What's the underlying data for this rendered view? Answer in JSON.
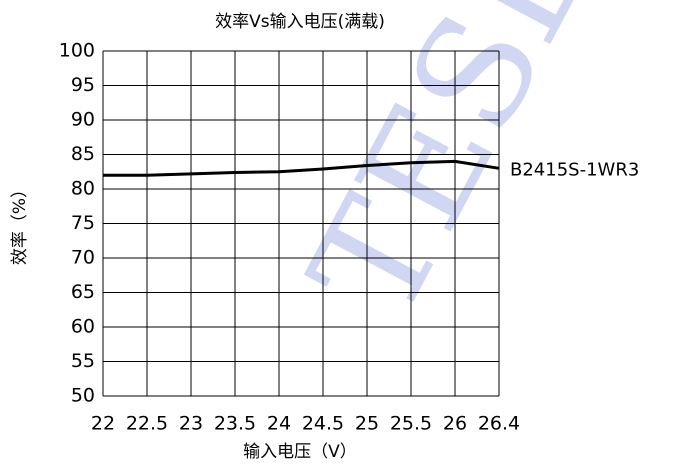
{
  "chart_data": {
    "type": "line",
    "title": "效率Vs输入电压(满载)",
    "x_label": "输入电压（V）",
    "y_label": "效率（%）",
    "watermark": "TESLA",
    "categories": [
      "22",
      "22.5",
      "23",
      "23.5",
      "24",
      "24.5",
      "25",
      "25.5",
      "26",
      "26.4"
    ],
    "series": [
      {
        "name": "B2415S-1WR3",
        "color": "#000000",
        "values": [
          82,
          82,
          82.2,
          82.4,
          82.5,
          82.9,
          83.4,
          83.8,
          84,
          83
        ]
      }
    ],
    "ylim": [
      50,
      100
    ],
    "yticks": [
      50,
      55,
      60,
      65,
      70,
      75,
      80,
      85,
      90,
      95,
      100
    ],
    "grid": true
  }
}
